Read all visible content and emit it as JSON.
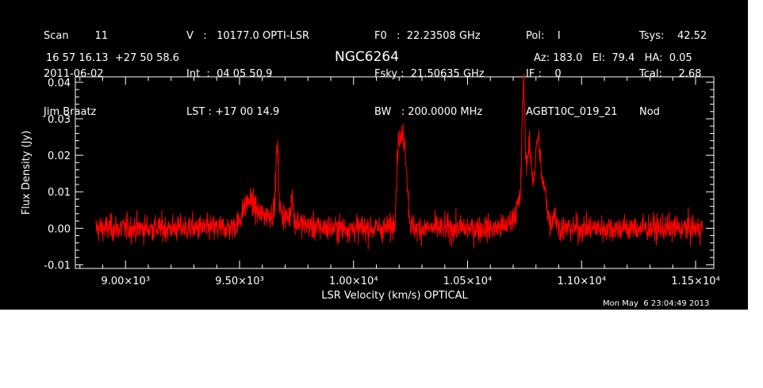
{
  "header": {
    "col1": [
      "Scan        11",
      "2011-06-02",
      "Jim Braatz"
    ],
    "col2": [
      "V   :   10177.0 OPTI-LSR",
      "Int  :  04 05 50.9",
      "LST : +17 00 14.9"
    ],
    "col3": [
      "F0   :  22.23508 GHz",
      "Fsky :  21.50635 GHz",
      "BW   : 200.0000 MHz"
    ],
    "col4": [
      "Pol:    I",
      "IF :    0",
      "AGBT10C_019_21"
    ],
    "col5": [
      "Tsys:    42.52",
      "Tcal:     2.68",
      "Nod"
    ],
    "coords": "16 57 16.13  +27 50 58.6",
    "source": "NGC6264",
    "azel": "Az: 183.0   El:  79.4   HA:  0.05",
    "timestamp": "Mon May  6 23:04:49 2013"
  },
  "chart_data": {
    "type": "line",
    "xlabel": "LSR Velocity (km/s) OPTICAL",
    "ylabel": "Flux Density (Jy)",
    "xlim": [
      8780,
      11580
    ],
    "ylim": [
      -0.011,
      0.0415
    ],
    "x_ticks": [
      {
        "value": 9000,
        "label": "9.00×10³"
      },
      {
        "value": 9500,
        "label": "9.50×10³"
      },
      {
        "value": 10000,
        "label": "1.00×10⁴"
      },
      {
        "value": 10500,
        "label": "1.05×10⁴"
      },
      {
        "value": 11000,
        "label": "1.10×10⁴"
      },
      {
        "value": 11500,
        "label": "1.15×10⁴"
      }
    ],
    "y_ticks": [
      {
        "value": -0.01,
        "label": "-0.01"
      },
      {
        "value": 0.0,
        "label": "0.00"
      },
      {
        "value": 0.01,
        "label": "0.01"
      },
      {
        "value": 0.02,
        "label": "0.02"
      },
      {
        "value": 0.03,
        "label": "0.03"
      },
      {
        "value": 0.04,
        "label": "0.04"
      }
    ],
    "x_range": [
      8870,
      11530
    ],
    "noise_rms": 0.0018,
    "features": [
      {
        "center": 9650,
        "width": 80,
        "peak": 0.004
      },
      {
        "center": 9540,
        "width": 25,
        "peak": 0.006
      },
      {
        "center": 9665,
        "width": 6,
        "peak": 0.018
      },
      {
        "center": 9730,
        "width": 4,
        "peak": 0.008
      },
      {
        "center": 10210,
        "width": 15,
        "peak": 0.022
      },
      {
        "center": 10195,
        "width": 6,
        "peak": 0.01
      },
      {
        "center": 10228,
        "width": 10,
        "peak": 0.01
      },
      {
        "center": 10760,
        "width": 40,
        "peak": 0.01
      },
      {
        "center": 10745,
        "width": 6,
        "peak": 0.03
      },
      {
        "center": 10770,
        "width": 10,
        "peak": 0.012
      },
      {
        "center": 10810,
        "width": 12,
        "peak": 0.02
      },
      {
        "center": 10840,
        "width": 10,
        "peak": 0.008
      },
      {
        "center": 10880,
        "width": 8,
        "peak": 0.004
      }
    ],
    "line_color": "#ff0000",
    "axis_color": "#ffffff",
    "background": "#000000"
  }
}
